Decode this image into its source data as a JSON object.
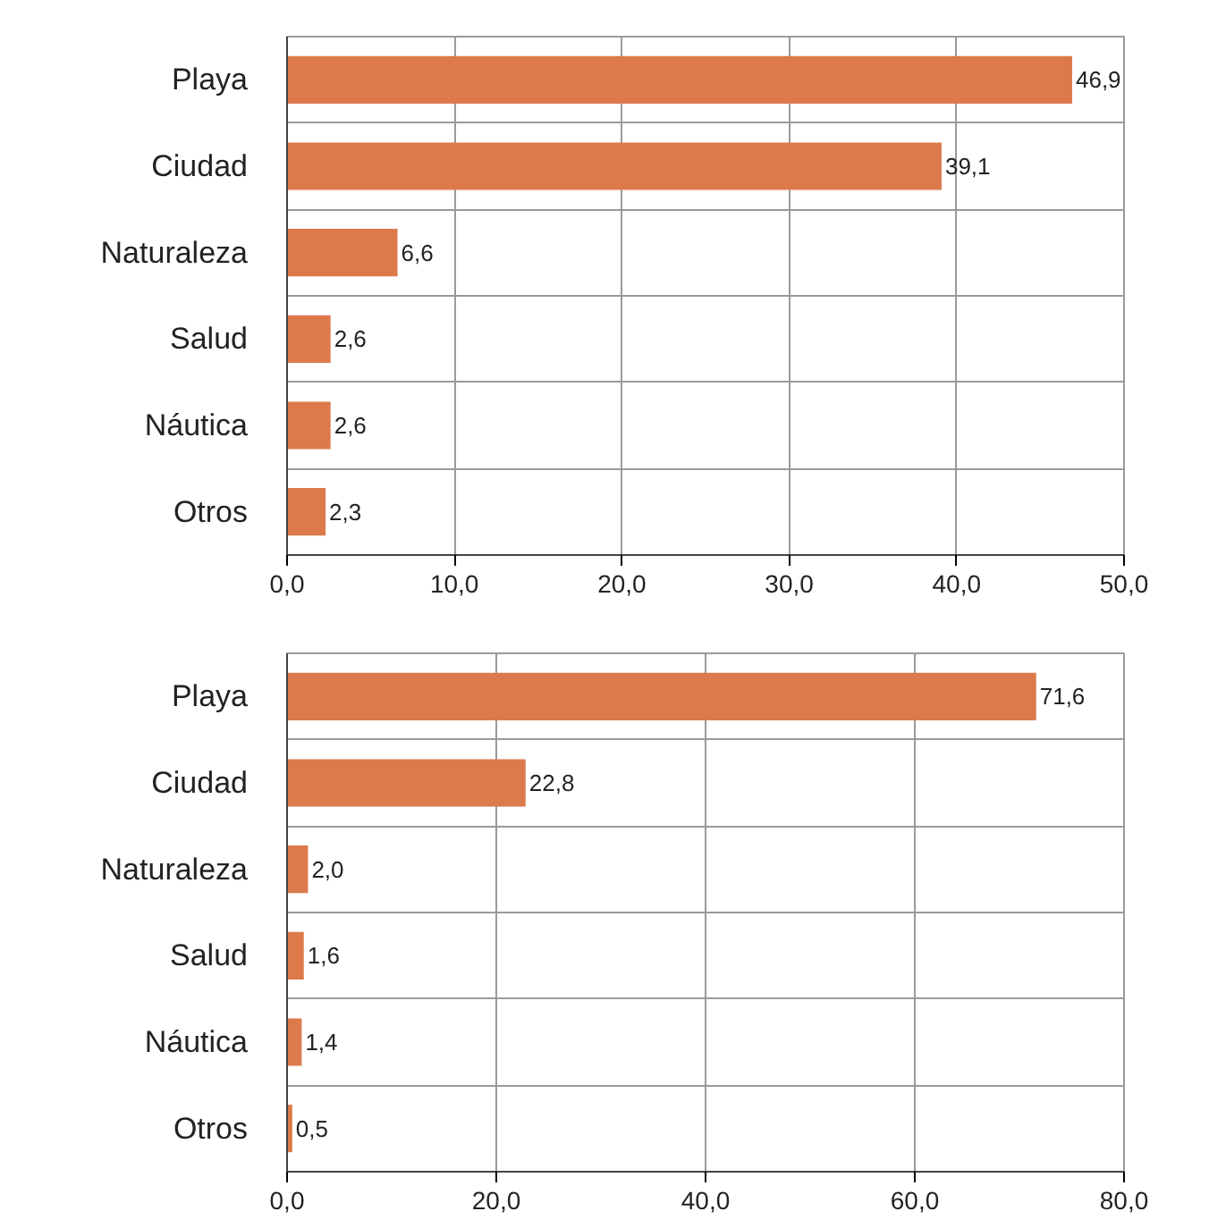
{
  "chart_data": [
    {
      "type": "bar",
      "orientation": "horizontal",
      "categories": [
        "Playa",
        "Ciudad",
        "Naturaleza",
        "Salud",
        "Náutica",
        "Otros"
      ],
      "values": [
        46.9,
        39.1,
        6.6,
        2.6,
        2.6,
        2.3
      ],
      "value_labels": [
        "46,9",
        "39,1",
        "6,6",
        "2,6",
        "2,6",
        "2,3"
      ],
      "color": "#dc7a4c",
      "xlim": [
        0,
        50
      ],
      "xticks": [
        {
          "value": 0,
          "label": "0,0"
        },
        {
          "value": 10,
          "label": "10,0"
        },
        {
          "value": 20,
          "label": "20,0"
        },
        {
          "value": 30,
          "label": "30,0"
        },
        {
          "value": 40,
          "label": "40,0"
        },
        {
          "value": 50,
          "label": "50,0"
        }
      ],
      "grid": true
    },
    {
      "type": "bar",
      "orientation": "horizontal",
      "categories": [
        "Playa",
        "Ciudad",
        "Naturaleza",
        "Salud",
        "Náutica",
        "Otros"
      ],
      "values": [
        71.6,
        22.8,
        2.0,
        1.6,
        1.4,
        0.5
      ],
      "value_labels": [
        "71,6",
        "22,8",
        "2,0",
        "1,6",
        "1,4",
        "0,5"
      ],
      "color": "#dc7a4c",
      "xlim": [
        0,
        80
      ],
      "xticks": [
        {
          "value": 0,
          "label": "0,0"
        },
        {
          "value": 20,
          "label": "20,0"
        },
        {
          "value": 40,
          "label": "40,0"
        },
        {
          "value": 60,
          "label": "60,0"
        },
        {
          "value": 80,
          "label": "80,0"
        }
      ],
      "grid": true
    }
  ]
}
